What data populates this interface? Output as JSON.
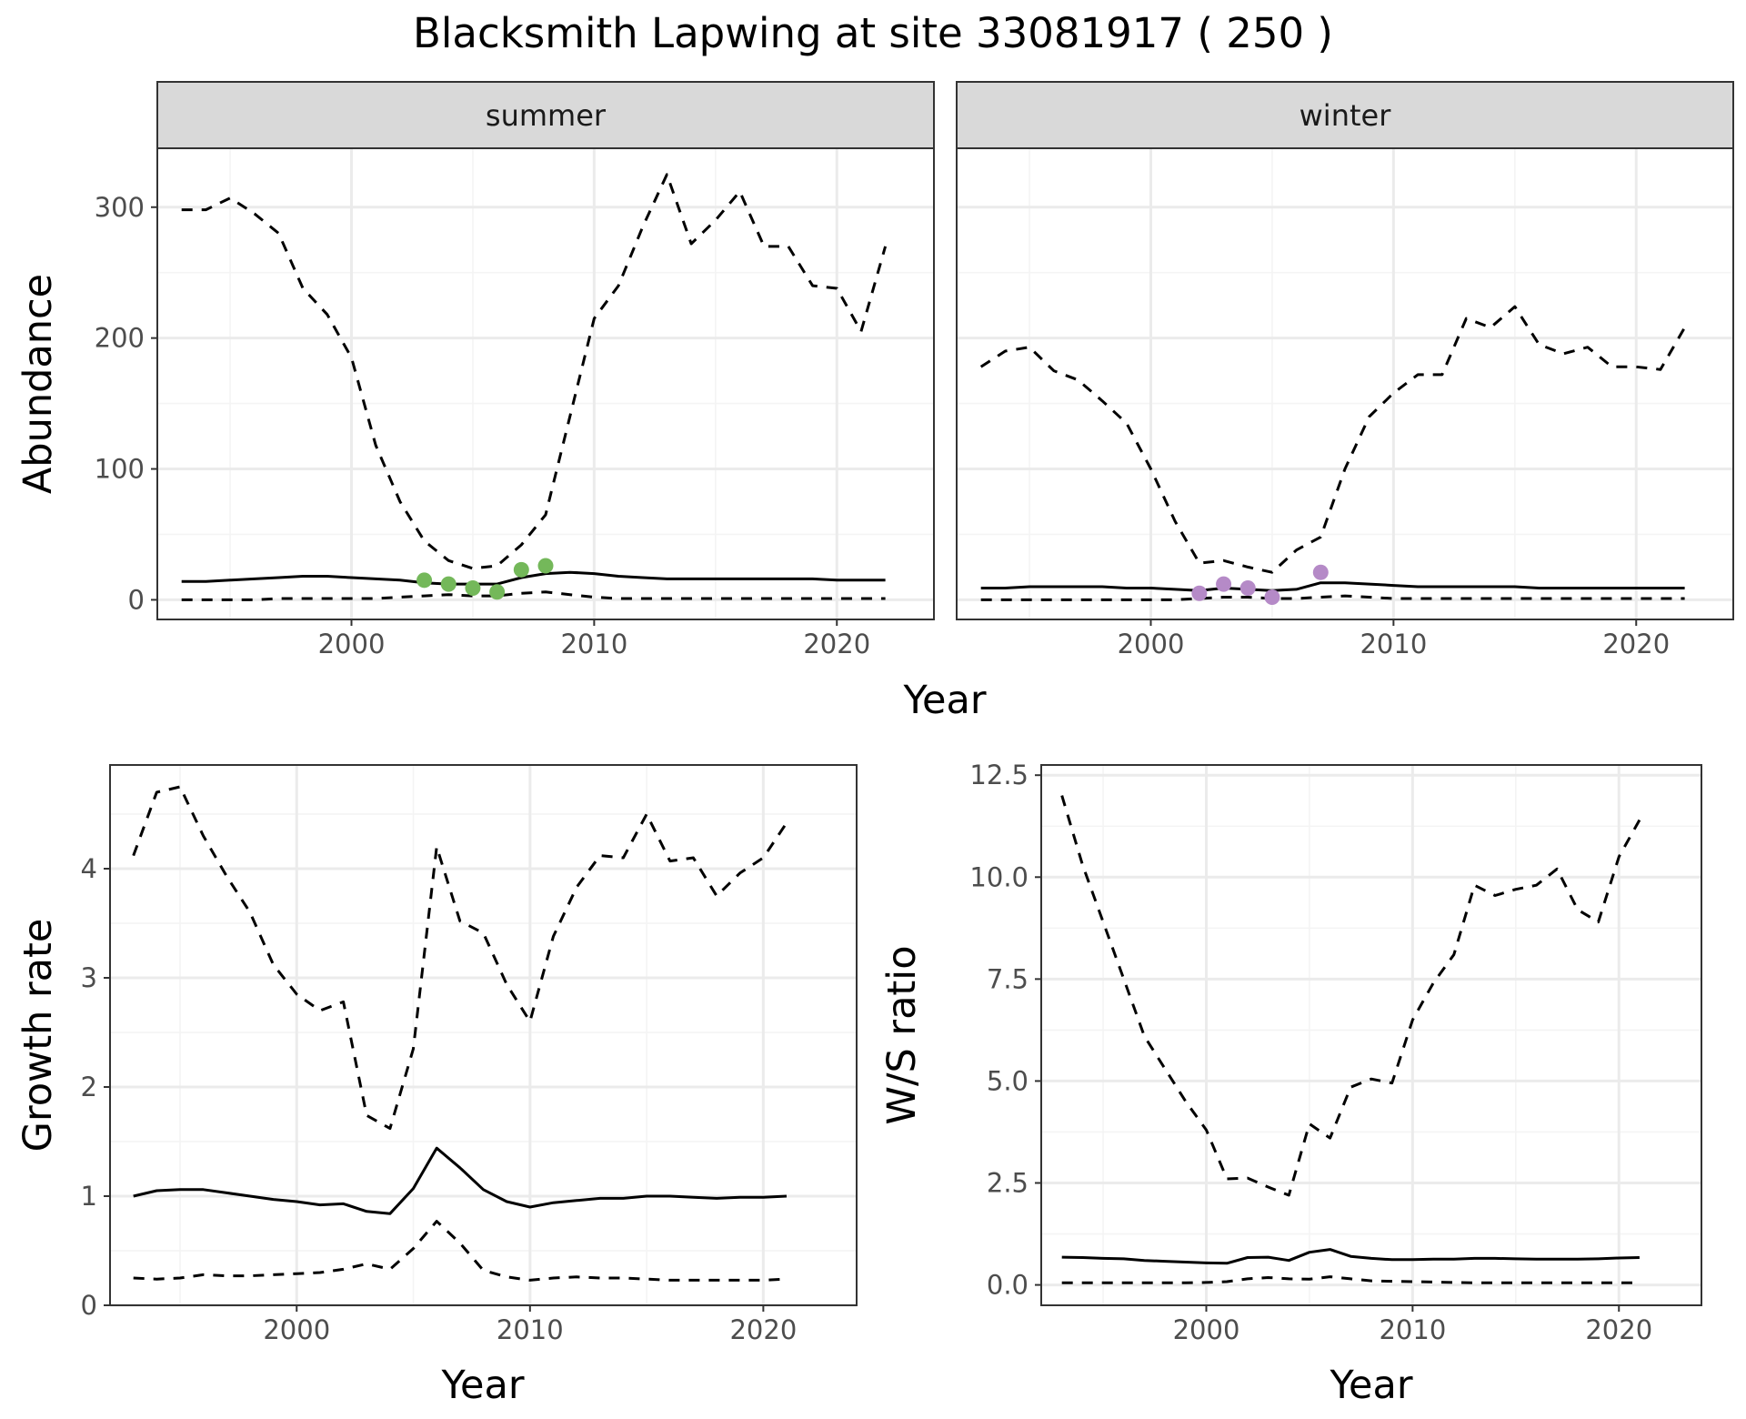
{
  "title": "Blacksmith Lapwing at site 33081917 ( 250 )",
  "colors": {
    "summer_points": "#74b85a",
    "winter_points": "#b58ac7",
    "strip_bg": "#d9d9d9",
    "grid_major": "#ebebeb",
    "grid_minor": "#f4f4f4",
    "line": "#000000"
  },
  "chart_data": [
    {
      "id": "abundance",
      "type": "line",
      "facets": [
        "summer",
        "winter"
      ],
      "xlabel": "Year",
      "ylabel": "Abundance",
      "xlim": [
        1992,
        2024
      ],
      "ylim": [
        -15,
        345
      ],
      "xticks": [
        2000,
        2010,
        2020
      ],
      "yticks": [
        0,
        100,
        200,
        300
      ],
      "x": [
        1993,
        1994,
        1995,
        1996,
        1997,
        1998,
        1999,
        2000,
        2001,
        2002,
        2003,
        2004,
        2005,
        2006,
        2007,
        2008,
        2009,
        2010,
        2011,
        2012,
        2013,
        2014,
        2015,
        2016,
        2017,
        2018,
        2019,
        2020,
        2021,
        2022
      ],
      "panels": [
        {
          "facet": "summer",
          "series": [
            {
              "role": "mean",
              "style": "solid",
              "values": [
                14,
                14,
                15,
                16,
                17,
                18,
                18,
                17,
                16,
                15,
                13,
                12,
                12,
                12,
                17,
                20,
                21,
                20,
                18,
                17,
                16,
                16,
                16,
                16,
                16,
                16,
                16,
                15,
                15,
                15
              ]
            },
            {
              "role": "upper",
              "style": "dashed",
              "values": [
                298,
                298,
                307,
                295,
                280,
                238,
                218,
                185,
                118,
                75,
                45,
                30,
                24,
                26,
                42,
                65,
                140,
                215,
                240,
                285,
                325,
                272,
                290,
                312,
                270,
                270,
                240,
                238,
                205,
                270
              ]
            },
            {
              "role": "lower",
              "style": "dashed",
              "values": [
                0,
                0,
                0,
                0,
                1,
                1,
                1,
                1,
                1,
                2,
                3,
                4,
                3,
                3,
                5,
                6,
                4,
                2,
                1,
                1,
                1,
                1,
                1,
                1,
                1,
                1,
                1,
                1,
                1,
                1
              ]
            }
          ],
          "points": {
            "x": [
              2003,
              2004,
              2005,
              2006,
              2007,
              2008
            ],
            "y": [
              15,
              12,
              9,
              6,
              23,
              26
            ]
          }
        },
        {
          "facet": "winter",
          "series": [
            {
              "role": "mean",
              "style": "solid",
              "values": [
                9,
                9,
                10,
                10,
                10,
                10,
                9,
                9,
                8,
                7,
                9,
                8,
                7,
                8,
                13,
                13,
                12,
                11,
                10,
                10,
                10,
                10,
                10,
                9,
                9,
                9,
                9,
                9,
                9,
                9
              ]
            },
            {
              "role": "upper",
              "style": "dashed",
              "values": [
                178,
                190,
                193,
                175,
                168,
                152,
                135,
                100,
                60,
                28,
                30,
                25,
                21,
                38,
                48,
                100,
                140,
                158,
                172,
                172,
                215,
                208,
                224,
                195,
                188,
                193,
                178,
                178,
                176,
                208
              ]
            },
            {
              "role": "lower",
              "style": "dashed",
              "values": [
                0,
                0,
                0,
                0,
                0,
                0,
                0,
                0,
                0,
                1,
                2,
                2,
                1,
                1,
                2,
                3,
                2,
                1,
                1,
                1,
                1,
                1,
                1,
                1,
                1,
                1,
                1,
                1,
                1,
                1
              ]
            }
          ],
          "points": {
            "x": [
              2002,
              2003,
              2004,
              2005,
              2007
            ],
            "y": [
              5,
              12,
              9,
              2,
              21
            ]
          }
        }
      ]
    },
    {
      "id": "growth",
      "type": "line",
      "xlabel": "Year",
      "ylabel": "Growth rate",
      "xlim": [
        1992,
        2024
      ],
      "ylim": [
        0,
        4.95
      ],
      "xticks": [
        2000,
        2010,
        2020
      ],
      "yticks": [
        0,
        1,
        2,
        3,
        4
      ],
      "x": [
        1993,
        1994,
        1995,
        1996,
        1997,
        1998,
        1999,
        2000,
        2001,
        2002,
        2003,
        2004,
        2005,
        2006,
        2007,
        2008,
        2009,
        2010,
        2011,
        2012,
        2013,
        2014,
        2015,
        2016,
        2017,
        2018,
        2019,
        2020,
        2021
      ],
      "series": [
        {
          "role": "mean",
          "style": "solid",
          "values": [
            1.0,
            1.05,
            1.06,
            1.06,
            1.03,
            1.0,
            0.97,
            0.95,
            0.92,
            0.93,
            0.86,
            0.84,
            1.07,
            1.44,
            1.26,
            1.06,
            0.95,
            0.9,
            0.94,
            0.96,
            0.98,
            0.98,
            1.0,
            1.0,
            0.99,
            0.98,
            0.99,
            0.99,
            1.0
          ]
        },
        {
          "role": "upper",
          "style": "dashed",
          "values": [
            4.12,
            4.7,
            4.75,
            4.3,
            3.93,
            3.6,
            3.12,
            2.85,
            2.7,
            2.78,
            1.74,
            1.62,
            2.35,
            4.2,
            3.52,
            3.41,
            2.94,
            2.6,
            3.38,
            3.83,
            4.12,
            4.1,
            4.5,
            4.07,
            4.1,
            3.75,
            3.96,
            4.1,
            4.42
          ]
        },
        {
          "role": "lower",
          "style": "dashed",
          "values": [
            0.25,
            0.24,
            0.25,
            0.28,
            0.27,
            0.27,
            0.28,
            0.29,
            0.3,
            0.33,
            0.38,
            0.33,
            0.52,
            0.77,
            0.57,
            0.32,
            0.26,
            0.23,
            0.25,
            0.26,
            0.25,
            0.25,
            0.24,
            0.23,
            0.23,
            0.23,
            0.23,
            0.23,
            0.24
          ]
        }
      ]
    },
    {
      "id": "ratio",
      "type": "line",
      "xlabel": "Year",
      "ylabel": "W/S ratio",
      "xlim": [
        1992,
        2024
      ],
      "ylim": [
        -0.5,
        12.75
      ],
      "xticks": [
        2000,
        2010,
        2020
      ],
      "yticks": [
        0,
        2.5,
        5,
        7.5,
        10,
        12.5
      ],
      "ytick_labels": [
        "0.0",
        "2.5",
        "5.0",
        "7.5",
        "10.0",
        "12.5"
      ],
      "x": [
        1993,
        1994,
        1995,
        1996,
        1997,
        1998,
        1999,
        2000,
        2001,
        2002,
        2003,
        2004,
        2005,
        2006,
        2007,
        2008,
        2009,
        2010,
        2011,
        2012,
        2013,
        2014,
        2015,
        2016,
        2017,
        2018,
        2019,
        2020,
        2021
      ],
      "series": [
        {
          "role": "mean",
          "style": "solid",
          "values": [
            0.68,
            0.67,
            0.65,
            0.64,
            0.6,
            0.58,
            0.56,
            0.54,
            0.53,
            0.67,
            0.68,
            0.6,
            0.8,
            0.87,
            0.7,
            0.65,
            0.62,
            0.62,
            0.63,
            0.63,
            0.65,
            0.65,
            0.64,
            0.63,
            0.63,
            0.63,
            0.64,
            0.66,
            0.67
          ]
        },
        {
          "role": "upper",
          "style": "dashed",
          "values": [
            12.0,
            10.3,
            8.9,
            7.5,
            6.1,
            5.3,
            4.5,
            3.8,
            2.6,
            2.62,
            2.4,
            2.2,
            3.95,
            3.6,
            4.85,
            5.05,
            4.95,
            6.5,
            7.4,
            8.1,
            9.8,
            9.55,
            9.7,
            9.8,
            10.2,
            9.2,
            8.9,
            10.5,
            11.4
          ]
        },
        {
          "role": "lower",
          "style": "dashed",
          "values": [
            0.05,
            0.05,
            0.05,
            0.05,
            0.05,
            0.05,
            0.05,
            0.06,
            0.08,
            0.15,
            0.18,
            0.15,
            0.14,
            0.2,
            0.15,
            0.1,
            0.09,
            0.08,
            0.07,
            0.06,
            0.05,
            0.05,
            0.05,
            0.05,
            0.05,
            0.05,
            0.05,
            0.05,
            0.05
          ]
        }
      ]
    }
  ]
}
